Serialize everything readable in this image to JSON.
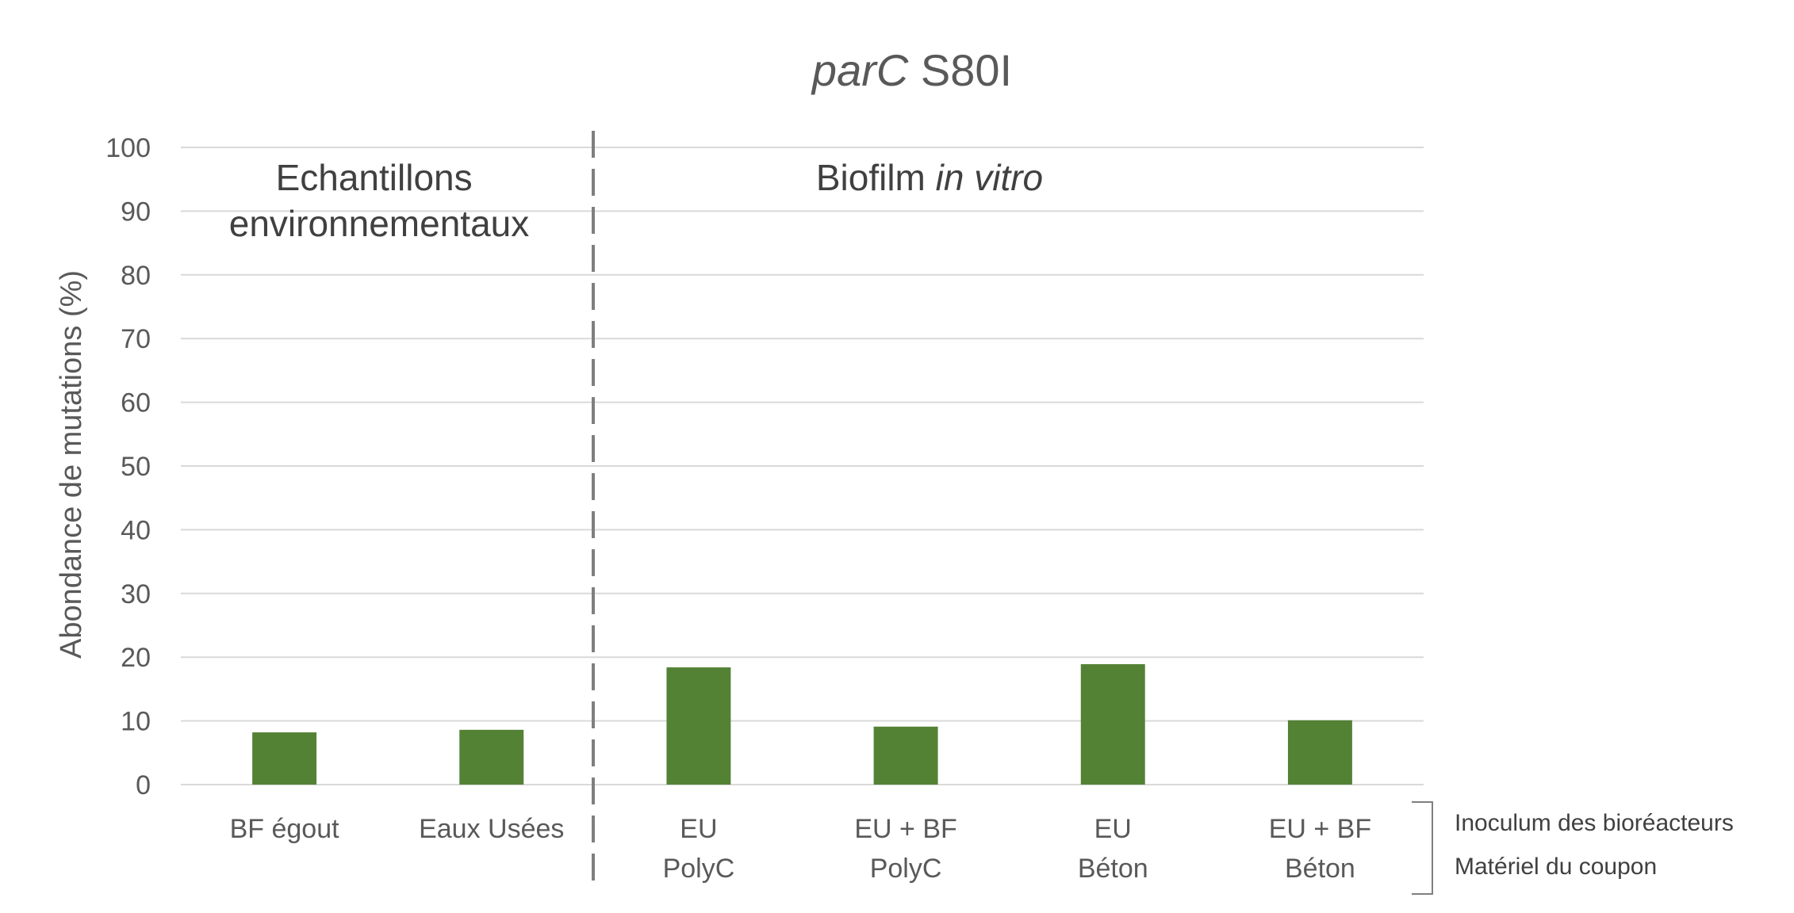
{
  "chart_data": {
    "type": "bar",
    "title": {
      "italic": "parC",
      "normal": " S80I"
    },
    "ylabel": "Abondance de mutations (%)",
    "xlabel": "",
    "ylim": [
      0,
      100
    ],
    "yticks": [
      0,
      10,
      20,
      30,
      40,
      50,
      60,
      70,
      80,
      90,
      100
    ],
    "grid": true,
    "categories": [
      [
        "BF égout"
      ],
      [
        "Eaux Usées"
      ],
      [
        "EU",
        "PolyC"
      ],
      [
        "EU + BF",
        "PolyC"
      ],
      [
        "EU",
        "Béton"
      ],
      [
        "EU + BF",
        "Béton"
      ]
    ],
    "values": [
      8.2,
      8.6,
      18.4,
      9.1,
      18.9,
      10.1
    ],
    "bar_color": "#548235",
    "groups": [
      {
        "label_lines": [
          "Echantillons",
          "environnementaux"
        ]
      },
      {
        "label_normal": "Biofilm ",
        "label_italic": "in vitro"
      }
    ],
    "annotations": [
      "Inoculum des bioréacteurs",
      "Matériel du coupon"
    ]
  }
}
